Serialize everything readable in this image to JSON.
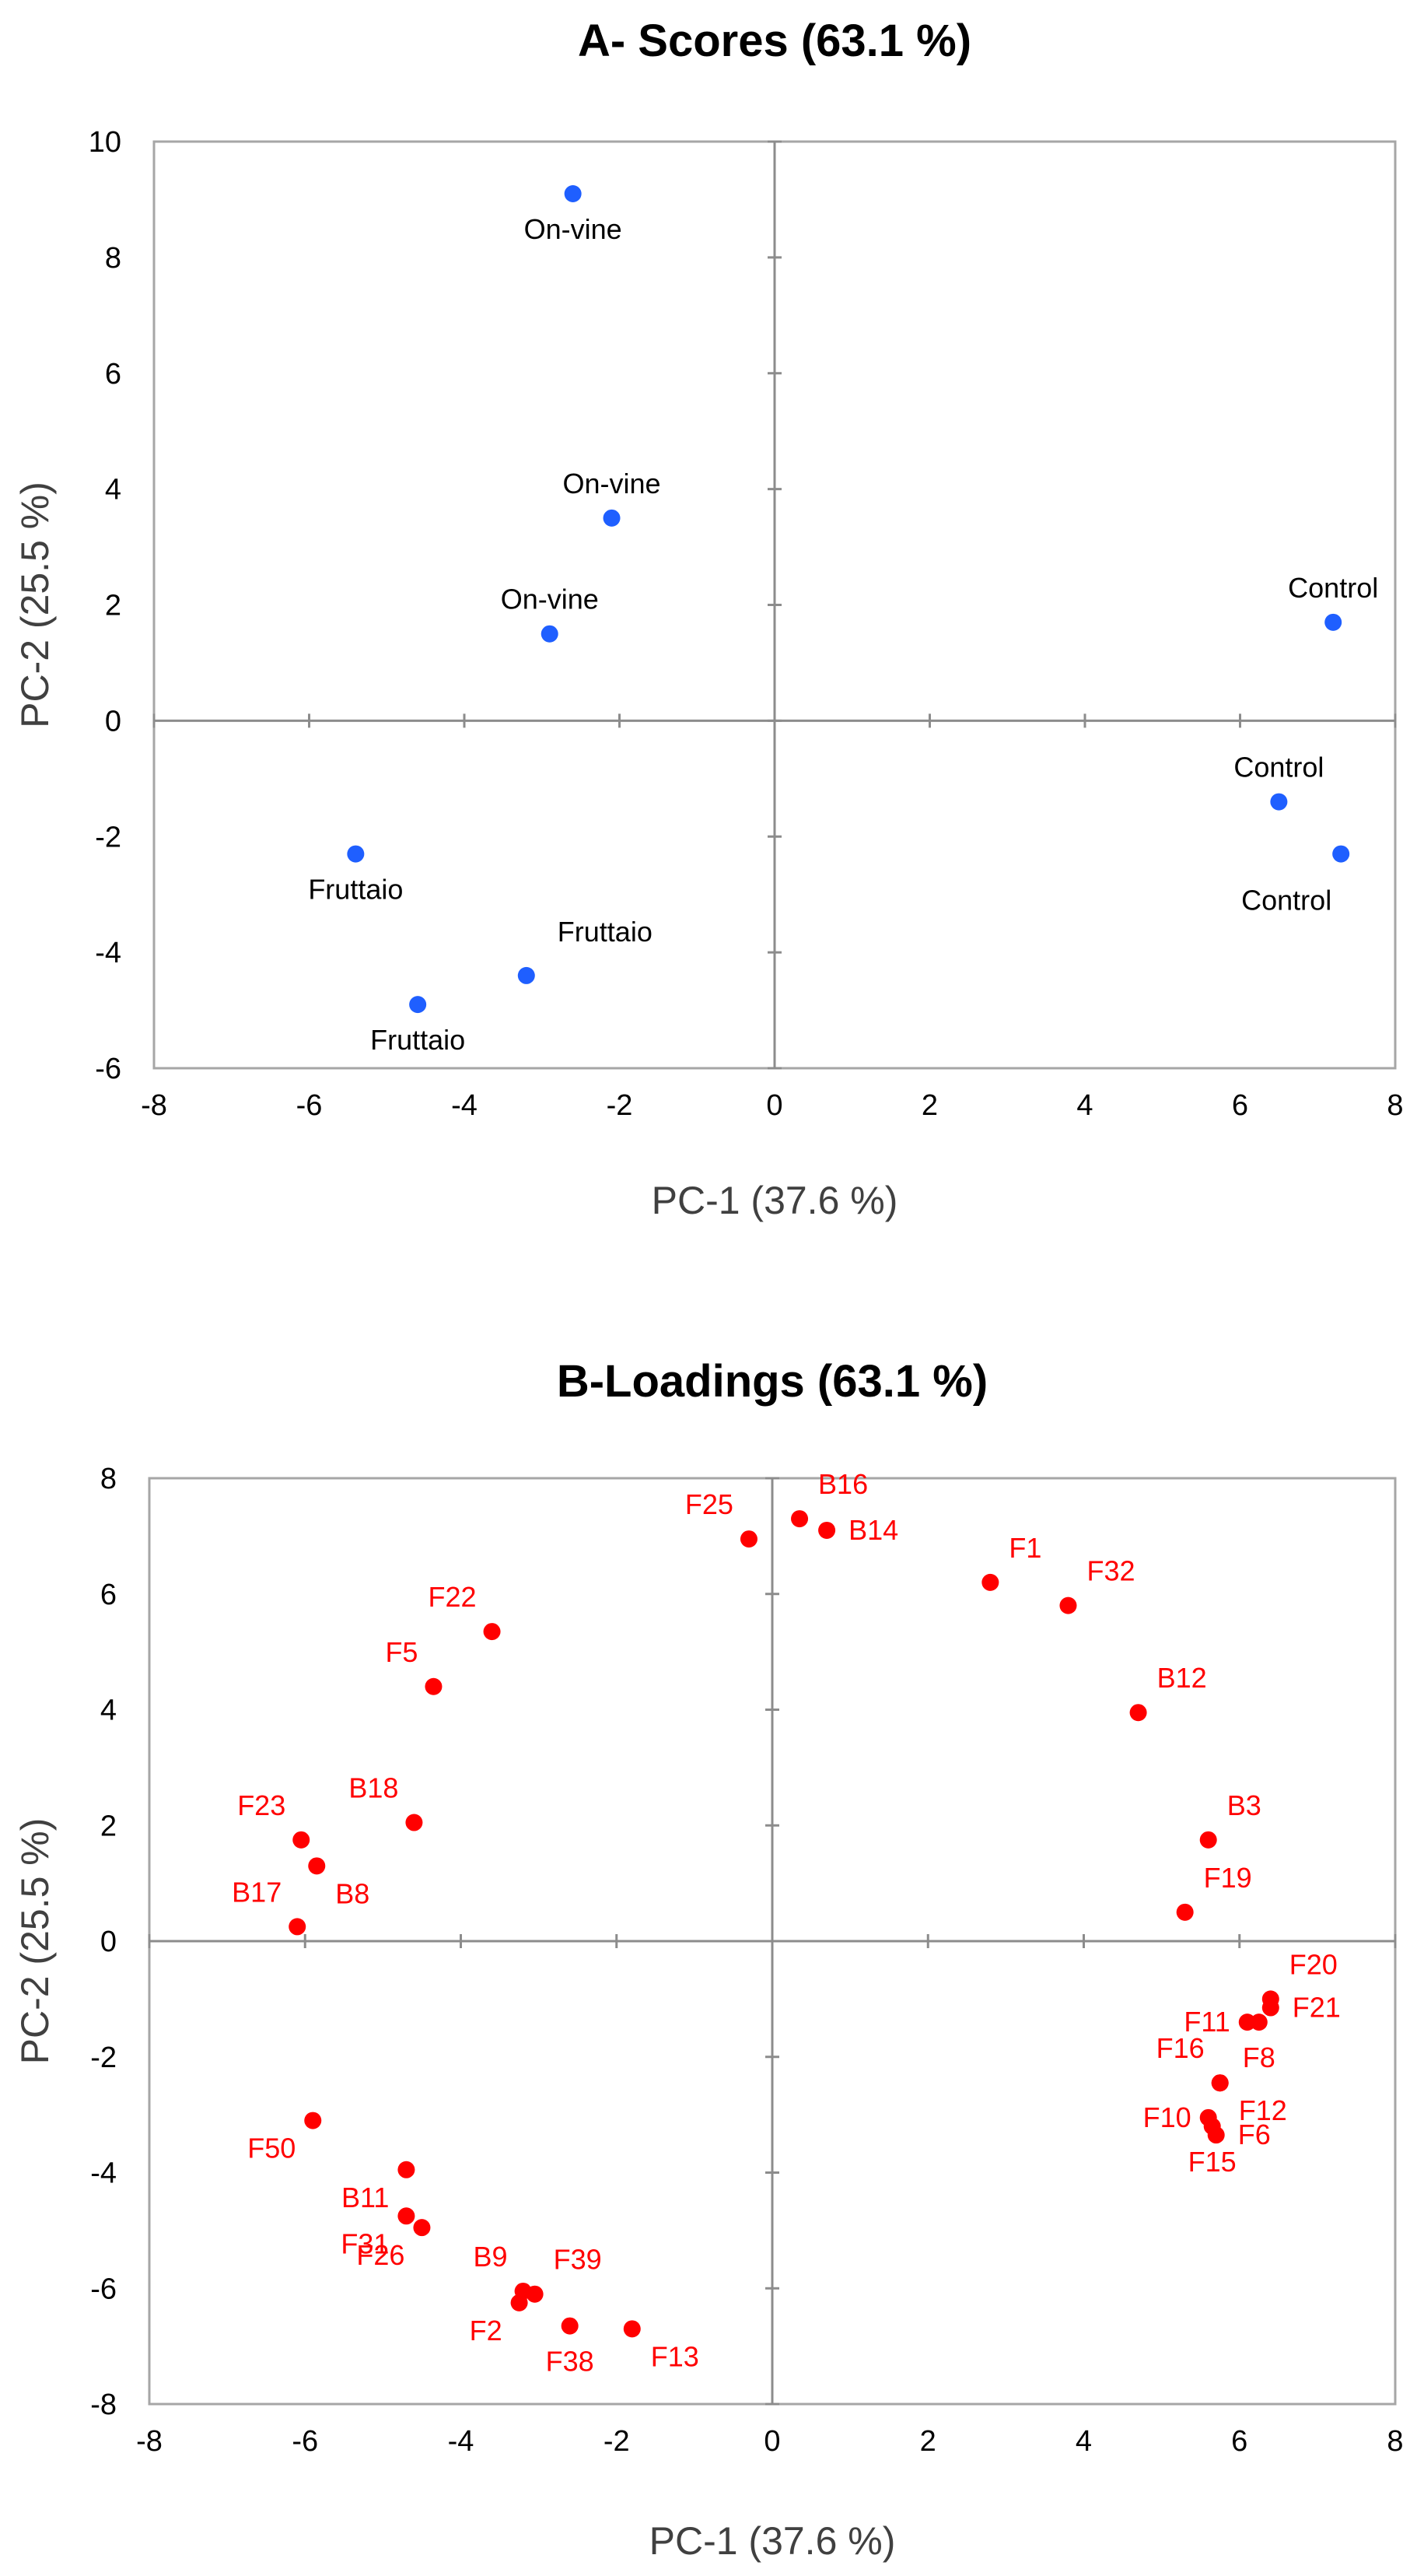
{
  "chart_data": [
    {
      "type": "scatter",
      "title": "A- Scores (63.1 %)",
      "xlabel": "PC-1 (37.6 %)",
      "ylabel": "PC-2 (25.5 %)",
      "xlim": [
        -8,
        8
      ],
      "ylim": [
        -6,
        10
      ],
      "xticks": [
        -8,
        -6,
        -4,
        -2,
        0,
        2,
        4,
        6,
        8
      ],
      "yticks": [
        -6,
        -4,
        -2,
        0,
        2,
        4,
        6,
        8,
        10
      ],
      "color": "#1f5fff",
      "points": [
        {
          "label": "On-vine",
          "x": -2.6,
          "y": 9.1,
          "pos": "below"
        },
        {
          "label": "On-vine",
          "x": -2.1,
          "y": 3.5,
          "pos": "above"
        },
        {
          "label": "On-vine",
          "x": -2.9,
          "y": 1.5,
          "pos": "above"
        },
        {
          "label": "Control",
          "x": 7.2,
          "y": 1.7,
          "pos": "above"
        },
        {
          "label": "Control",
          "x": 6.5,
          "y": -1.4,
          "pos": "above"
        },
        {
          "label": "Control",
          "x": 7.3,
          "y": -2.3,
          "pos": "below-left"
        },
        {
          "label": "Fruttaio",
          "x": -5.4,
          "y": -2.3,
          "pos": "below"
        },
        {
          "label": "Fruttaio",
          "x": -3.2,
          "y": -4.4,
          "pos": "above-right"
        },
        {
          "label": "Fruttaio",
          "x": -4.6,
          "y": -4.9,
          "pos": "below"
        }
      ]
    },
    {
      "type": "scatter",
      "title": "B-Loadings (63.1 %)",
      "xlabel": "PC-1 (37.6 %)",
      "ylabel": "PC-2 (25.5 %)",
      "xlim": [
        -8,
        8
      ],
      "ylim": [
        -8,
        8
      ],
      "xticks": [
        -8,
        -6,
        -4,
        -2,
        0,
        2,
        4,
        6,
        8
      ],
      "yticks": [
        -8,
        -6,
        -4,
        -2,
        0,
        2,
        4,
        6,
        8
      ],
      "color": "#ff0000",
      "points": [
        {
          "label": "F25",
          "x": -0.3,
          "y": 6.95,
          "pos": "upper-left"
        },
        {
          "label": "B16",
          "x": 0.35,
          "y": 7.3,
          "pos": "upper-right"
        },
        {
          "label": "B14",
          "x": 0.7,
          "y": 7.1,
          "pos": "right"
        },
        {
          "label": "F1",
          "x": 2.8,
          "y": 6.2,
          "pos": "upper-right"
        },
        {
          "label": "F32",
          "x": 3.8,
          "y": 5.8,
          "pos": "upper-right"
        },
        {
          "label": "B12",
          "x": 4.7,
          "y": 3.95,
          "pos": "upper-right"
        },
        {
          "label": "B3",
          "x": 5.6,
          "y": 1.75,
          "pos": "upper-right"
        },
        {
          "label": "F19",
          "x": 5.3,
          "y": 0.5,
          "pos": "upper-right"
        },
        {
          "label": "F20",
          "x": 6.4,
          "y": -1.0,
          "pos": "upper-right"
        },
        {
          "label": "F21",
          "x": 6.4,
          "y": -1.15,
          "pos": "right"
        },
        {
          "label": "F11",
          "x": 6.1,
          "y": -1.4,
          "pos": "left"
        },
        {
          "label": "F8",
          "x": 6.25,
          "y": -1.4,
          "pos": "below"
        },
        {
          "label": "F16",
          "x": 5.75,
          "y": -2.45,
          "pos": "upper-left"
        },
        {
          "label": "F12",
          "x": 5.75,
          "y": -2.45,
          "pos": "lower-right"
        },
        {
          "label": "F10",
          "x": 5.6,
          "y": -3.05,
          "pos": "left"
        },
        {
          "label": "F6",
          "x": 5.7,
          "y": -3.35,
          "pos": "right"
        },
        {
          "label": "F15",
          "x": 5.65,
          "y": -3.2,
          "pos": "below"
        },
        {
          "label": "F22",
          "x": -3.6,
          "y": 5.35,
          "pos": "upper-left"
        },
        {
          "label": "F5",
          "x": -4.35,
          "y": 4.4,
          "pos": "upper-left"
        },
        {
          "label": "B18",
          "x": -4.6,
          "y": 2.05,
          "pos": "upper-left"
        },
        {
          "label": "F23",
          "x": -6.05,
          "y": 1.75,
          "pos": "upper-left"
        },
        {
          "label": "B8",
          "x": -5.85,
          "y": 1.3,
          "pos": "lower-right"
        },
        {
          "label": "B17",
          "x": -6.1,
          "y": 0.25,
          "pos": "upper-left"
        },
        {
          "label": "F50",
          "x": -5.9,
          "y": -3.1,
          "pos": "lower-left"
        },
        {
          "label": "B11",
          "x": -4.7,
          "y": -3.95,
          "pos": "lower-left"
        },
        {
          "label": "F31",
          "x": -4.7,
          "y": -4.75,
          "pos": "lower-left"
        },
        {
          "label": "F26",
          "x": -4.5,
          "y": -4.95,
          "pos": "lower-left"
        },
        {
          "label": "B9",
          "x": -3.2,
          "y": -6.05,
          "pos": "upper-left"
        },
        {
          "label": "F39",
          "x": -3.05,
          "y": -6.1,
          "pos": "upper-right"
        },
        {
          "label": "F2",
          "x": -3.25,
          "y": -6.25,
          "pos": "lower-left"
        },
        {
          "label": "F38",
          "x": -2.6,
          "y": -6.65,
          "pos": "below"
        },
        {
          "label": "F13",
          "x": -1.8,
          "y": -6.7,
          "pos": "lower-right"
        }
      ]
    }
  ]
}
